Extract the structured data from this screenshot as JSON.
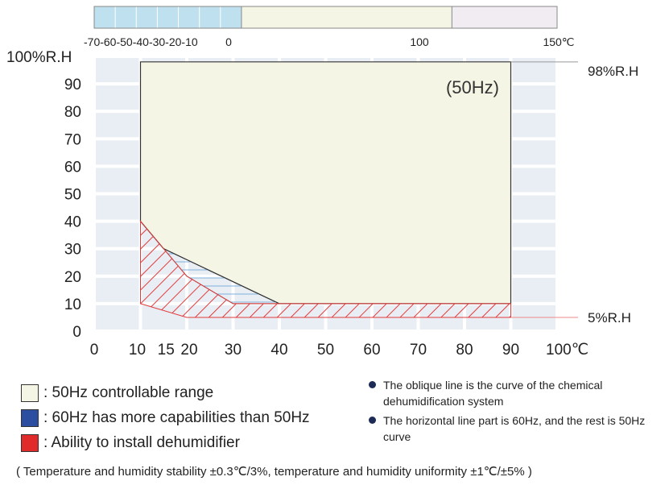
{
  "chart_data": {
    "type": "area",
    "xlabel": "",
    "ylabel": "",
    "x_ticks": [
      "0",
      "10",
      "15",
      "20",
      "30",
      "40",
      "50",
      "60",
      "70",
      "80",
      "90",
      "100℃"
    ],
    "x_tick_values": [
      0,
      10,
      15,
      20,
      30,
      40,
      50,
      60,
      70,
      80,
      90,
      100
    ],
    "y_ticks": [
      "0",
      "10",
      "20",
      "30",
      "40",
      "50",
      "60",
      "70",
      "80",
      "90",
      "100%R.H"
    ],
    "y_tick_values": [
      0,
      10,
      20,
      30,
      40,
      50,
      60,
      70,
      80,
      90,
      100
    ],
    "xlim": [
      0,
      100
    ],
    "ylim": [
      0,
      100
    ],
    "grid": true,
    "annotation_freq": "(50Hz)",
    "label_98": "98%R.H",
    "label_5": "5%R.H",
    "controllable_range_50hz": [
      [
        10,
        40
      ],
      [
        15,
        30
      ],
      [
        40,
        10
      ],
      [
        90,
        10
      ],
      [
        90,
        98
      ],
      [
        10,
        98
      ]
    ],
    "capability_60hz": [
      [
        10,
        40
      ],
      [
        15,
        30
      ],
      [
        40,
        10
      ],
      [
        30,
        10
      ],
      [
        20,
        20
      ]
    ],
    "dehumidifier_area": [
      [
        10,
        40
      ],
      [
        20,
        20
      ],
      [
        30,
        10
      ],
      [
        90,
        10
      ],
      [
        90,
        5
      ],
      [
        20,
        5
      ],
      [
        10,
        10
      ]
    ],
    "temperature_bar": {
      "ticks": [
        "-70",
        "-60",
        "-50",
        "-40",
        "-30",
        "-20",
        "-10",
        "0",
        "100",
        "150℃"
      ],
      "tick_values": [
        -70,
        -60,
        -50,
        -40,
        -30,
        -20,
        -10,
        0,
        100,
        150
      ],
      "segments": [
        {
          "from": -70,
          "to": 0,
          "color": "#bfe0ee"
        },
        {
          "from": 0,
          "to": 100,
          "color": "#f5f5e6"
        },
        {
          "from": 100,
          "to": 150,
          "color": "#f1ecf2"
        }
      ]
    },
    "colors": {
      "grid_cell": "#e9eef4",
      "controllable": "#f5f5e6",
      "blue_hatch": "#7fb2de",
      "red_hatch": "#e23b3b",
      "axis": "#555555"
    }
  },
  "legend": [
    {
      "color": "#f5f5e6",
      "label": ": 50Hz controllable range"
    },
    {
      "color": "#2c4ea1",
      "label": ": 60Hz has more capabilities than 50Hz"
    },
    {
      "color": "#e12a2a",
      "label": ": Ability to install dehumidifier"
    }
  ],
  "notes": [
    "The oblique line is the curve of the chemical dehumidification system",
    "The horizontal line part is 60Hz, and the rest is 50Hz curve"
  ],
  "footer": "( Temperature and humidity stability ±0.3℃/3%, temperature and humidity uniformity ±1℃/±5% )"
}
